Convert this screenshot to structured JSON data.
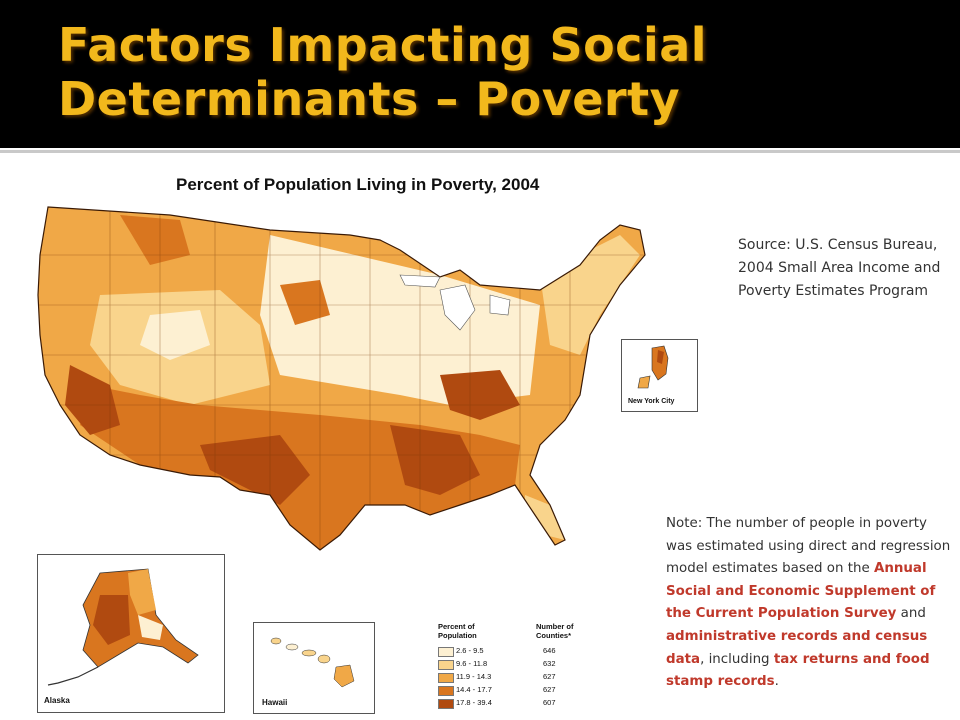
{
  "slide": {
    "title": "Factors Impacting Social\nDeterminants – Poverty"
  },
  "map": {
    "title": "Percent of Population Living in Poverty, 2004",
    "inset_labels": {
      "nyc": "New York City",
      "alaska": "Alaska",
      "hawaii": "Hawaii"
    },
    "colors": [
      "#fdf0d2",
      "#f9d48c",
      "#f0a847",
      "#d9761f",
      "#b04a10"
    ]
  },
  "source_text": "Source: U.S. Census Bureau, 2004 Small Area Income and Poverty Estimates Program",
  "note": {
    "part1": "Note: The number of people in poverty was estimated using direct and regression model estimates based on the ",
    "hl1": "Annual Social and Economic Supplement of the Current Population Survey",
    "part2": " and ",
    "hl2": "administrative records and census data",
    "part3": ", including ",
    "hl3": "tax returns and food stamp records",
    "part4": "."
  },
  "legend": {
    "header_percent": "Percent of Population",
    "header_counties": "Number of Counties*",
    "rows": [
      {
        "range": "2.6 - 9.5",
        "count": "646",
        "color": "#fdf0d2"
      },
      {
        "range": "9.6 - 11.8",
        "count": "632",
        "color": "#f9d48c"
      },
      {
        "range": "11.9 - 14.3",
        "count": "627",
        "color": "#f0a847"
      },
      {
        "range": "14.4 - 17.7",
        "count": "627",
        "color": "#d9761f"
      },
      {
        "range": "17.8 - 39.4",
        "count": "607",
        "color": "#b04a10"
      }
    ]
  }
}
